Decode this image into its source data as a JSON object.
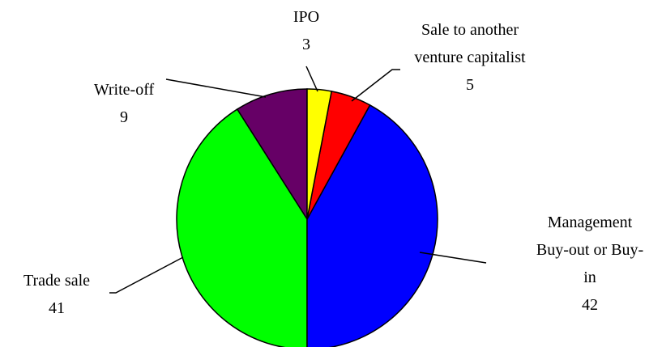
{
  "chart_data": {
    "type": "pie",
    "categories": [
      "IPO",
      "Sale to another venture capitalist",
      "Management Buy-out or Buy-in",
      "Trade sale",
      "Write-off"
    ],
    "values": [
      3,
      5,
      42,
      41,
      9
    ],
    "colors": [
      "#ffff00",
      "#ff0000",
      "#0000ff",
      "#00ff00",
      "#660066"
    ]
  }
}
